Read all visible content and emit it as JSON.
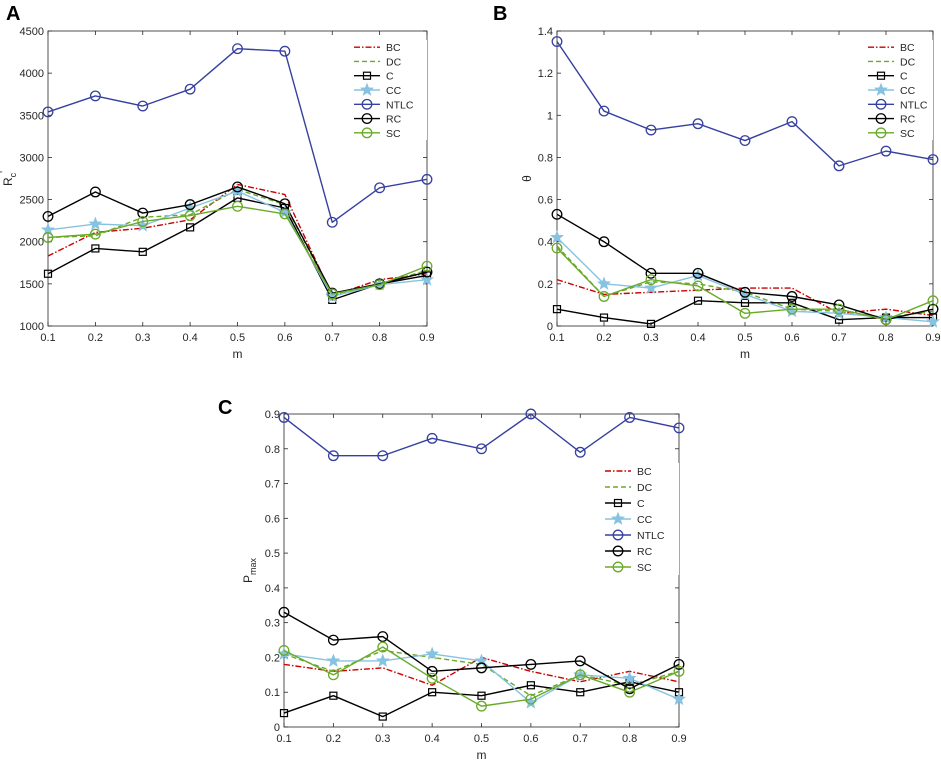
{
  "chart_data": [
    {
      "panel": "A",
      "type": "line",
      "xlabel": "m",
      "ylabel": "R_c'",
      "ylabel_main": "R",
      "ylabel_sub": "c",
      "ylabel_sup": "'",
      "x": [
        0.1,
        0.2,
        0.3,
        0.4,
        0.5,
        0.6,
        0.7,
        0.8,
        0.9
      ],
      "xticks": [
        "0.1",
        "0.2",
        "0.3",
        "0.4",
        "0.5",
        "0.6",
        "0.7",
        "0.8",
        "0.9"
      ],
      "xlim": [
        0.1,
        0.9
      ],
      "ylim": [
        1000,
        4500
      ],
      "yticks": [
        1000,
        1500,
        2000,
        2500,
        3000,
        3500,
        4000,
        4500
      ],
      "legend_position": "top-right",
      "series": [
        {
          "name": "BC",
          "values": [
            1830,
            2110,
            2160,
            2260,
            2680,
            2560,
            1360,
            1550,
            1620
          ]
        },
        {
          "name": "DC",
          "values": [
            2050,
            2070,
            2290,
            2320,
            2620,
            2440,
            1370,
            1500,
            1660
          ]
        },
        {
          "name": "C",
          "values": [
            1620,
            1920,
            1880,
            2170,
            2520,
            2400,
            1310,
            1500,
            1600
          ]
        },
        {
          "name": "CC",
          "values": [
            2140,
            2210,
            2190,
            2400,
            2600,
            2350,
            1350,
            1490,
            1550
          ]
        },
        {
          "name": "NTLC",
          "values": [
            3540,
            3730,
            3610,
            3810,
            4290,
            4260,
            2230,
            2640,
            2740
          ]
        },
        {
          "name": "RC",
          "values": [
            2300,
            2590,
            2340,
            2440,
            2650,
            2450,
            1390,
            1500,
            1640
          ]
        },
        {
          "name": "SC",
          "values": [
            2050,
            2090,
            2240,
            2310,
            2420,
            2330,
            1380,
            1490,
            1710
          ]
        }
      ]
    },
    {
      "panel": "B",
      "type": "line",
      "xlabel": "m",
      "ylabel": "θ",
      "x": [
        0.1,
        0.2,
        0.3,
        0.4,
        0.5,
        0.6,
        0.7,
        0.8,
        0.9
      ],
      "xticks": [
        "0.1",
        "0.2",
        "0.3",
        "0.4",
        "0.5",
        "0.6",
        "0.7",
        "0.8",
        "0.9"
      ],
      "xlim": [
        0.1,
        0.9
      ],
      "ylim": [
        0,
        1.4
      ],
      "yticks": [
        "0",
        "0.2",
        "0.4",
        "0.6",
        "0.8",
        "1",
        "1.2",
        "1.4"
      ],
      "legend_position": "top-right",
      "series": [
        {
          "name": "BC",
          "values": [
            0.22,
            0.15,
            0.16,
            0.17,
            0.18,
            0.18,
            0.06,
            0.08,
            0.05
          ]
        },
        {
          "name": "DC",
          "values": [
            0.38,
            0.14,
            0.21,
            0.2,
            0.16,
            0.08,
            0.07,
            0.04,
            0.07
          ]
        },
        {
          "name": "C",
          "values": [
            0.08,
            0.04,
            0.01,
            0.12,
            0.11,
            0.11,
            0.03,
            0.04,
            0.04
          ]
        },
        {
          "name": "CC",
          "values": [
            0.42,
            0.2,
            0.18,
            0.24,
            0.15,
            0.07,
            0.06,
            0.04,
            0.02
          ]
        },
        {
          "name": "NTLC",
          "values": [
            1.35,
            1.02,
            0.93,
            0.96,
            0.88,
            0.97,
            0.76,
            0.83,
            0.79
          ]
        },
        {
          "name": "RC",
          "values": [
            0.53,
            0.4,
            0.25,
            0.25,
            0.16,
            0.14,
            0.1,
            0.03,
            0.08
          ]
        },
        {
          "name": "SC",
          "values": [
            0.37,
            0.14,
            0.22,
            0.19,
            0.06,
            0.08,
            0.08,
            0.03,
            0.12
          ]
        }
      ]
    },
    {
      "panel": "C",
      "type": "line",
      "xlabel": "m",
      "ylabel": "P_max",
      "ylabel_main": "P",
      "ylabel_sub": "max",
      "x": [
        0.1,
        0.2,
        0.3,
        0.4,
        0.5,
        0.6,
        0.7,
        0.8,
        0.9
      ],
      "xticks": [
        "0.1",
        "0.2",
        "0.3",
        "0.4",
        "0.5",
        "0.6",
        "0.7",
        "0.8",
        "0.9"
      ],
      "xlim": [
        0.1,
        0.9
      ],
      "ylim": [
        0,
        0.9
      ],
      "yticks": [
        "0",
        "0.1",
        "0.2",
        "0.3",
        "0.4",
        "0.5",
        "0.6",
        "0.7",
        "0.8",
        "0.9"
      ],
      "legend_position": "right",
      "series": [
        {
          "name": "BC",
          "values": [
            0.18,
            0.16,
            0.17,
            0.12,
            0.2,
            0.16,
            0.13,
            0.16,
            0.13
          ]
        },
        {
          "name": "DC",
          "values": [
            0.21,
            0.16,
            0.22,
            0.2,
            0.18,
            0.09,
            0.15,
            0.12,
            0.16
          ]
        },
        {
          "name": "C",
          "values": [
            0.04,
            0.09,
            0.03,
            0.1,
            0.09,
            0.12,
            0.1,
            0.13,
            0.1
          ]
        },
        {
          "name": "CC",
          "values": [
            0.21,
            0.19,
            0.19,
            0.21,
            0.19,
            0.07,
            0.15,
            0.14,
            0.08
          ]
        },
        {
          "name": "NTLC",
          "values": [
            0.89,
            0.78,
            0.78,
            0.83,
            0.8,
            0.9,
            0.79,
            0.89,
            0.86
          ]
        },
        {
          "name": "RC",
          "values": [
            0.33,
            0.25,
            0.26,
            0.16,
            0.17,
            0.18,
            0.19,
            0.11,
            0.18
          ]
        },
        {
          "name": "SC",
          "values": [
            0.22,
            0.15,
            0.23,
            0.14,
            0.06,
            0.08,
            0.15,
            0.1,
            0.16
          ]
        }
      ]
    }
  ],
  "styles": {
    "BC": {
      "color": "#cc0000",
      "dash": "6,2,1.5,2",
      "marker": "none"
    },
    "DC": {
      "color": "#6aaa2a",
      "dash": "5,3",
      "marker": "none"
    },
    "C": {
      "color": "#000000",
      "dash": "",
      "marker": "square"
    },
    "CC": {
      "color": "#87c3e0",
      "dash": "",
      "marker": "star"
    },
    "NTLC": {
      "color": "#3640a0",
      "dash": "",
      "marker": "circle"
    },
    "RC": {
      "color": "#000000",
      "dash": "",
      "marker": "circle"
    },
    "SC": {
      "color": "#6aaa2a",
      "dash": "",
      "marker": "circle"
    }
  }
}
